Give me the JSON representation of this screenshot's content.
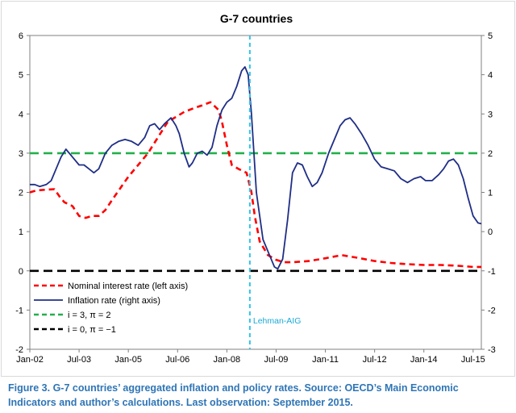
{
  "chart_data": {
    "type": "line",
    "title": "G-7 countries",
    "x_tick_labels": [
      "Jan-02",
      "Jul-03",
      "Jan-05",
      "Jul-06",
      "Jan-08",
      "Jul-09",
      "Jan-11",
      "Jul-12",
      "Jan-14",
      "Jul-15"
    ],
    "x_range": [
      2002.0,
      2015.75
    ],
    "y_left_ticks": [
      "-2",
      "-1",
      "0",
      "1",
      "2",
      "3",
      "4",
      "5",
      "6"
    ],
    "y_left_range": [
      -2,
      6
    ],
    "y_right_ticks": [
      "-3",
      "-2",
      "-1",
      "0",
      "1",
      "2",
      "3",
      "4",
      "5"
    ],
    "y_right_range": [
      -3,
      5
    ],
    "grid": false,
    "legend_position": "lower-left",
    "vline": {
      "x": 2008.7,
      "label": "Lehman-AIG",
      "color": "#33c3e8"
    },
    "series": [
      {
        "name": "Nominal interest rate (left axis)",
        "axis": "left",
        "color": "#ff0000",
        "style": "dashed",
        "x": [
          2002.0,
          2002.2,
          2002.5,
          2002.75,
          2002.9,
          2003.05,
          2003.3,
          2003.5,
          2003.7,
          2003.9,
          2004.1,
          2004.3,
          2004.5,
          2004.75,
          2005.0,
          2005.3,
          2005.6,
          2005.9,
          2006.2,
          2006.5,
          2006.7,
          2007.0,
          2007.25,
          2007.5,
          2007.75,
          2007.85,
          2008.0,
          2008.15,
          2008.35,
          2008.6,
          2008.75,
          2008.85,
          2009.0,
          2009.25,
          2009.5,
          2009.75,
          2010.0,
          2010.5,
          2011.0,
          2011.5,
          2012.0,
          2012.5,
          2013.0,
          2013.5,
          2014.0,
          2014.5,
          2015.0,
          2015.5,
          2015.75
        ],
        "values": [
          2.0,
          2.05,
          2.07,
          2.08,
          1.9,
          1.75,
          1.65,
          1.4,
          1.35,
          1.4,
          1.4,
          1.55,
          1.8,
          2.1,
          2.4,
          2.7,
          3.0,
          3.4,
          3.8,
          3.95,
          4.05,
          4.15,
          4.22,
          4.3,
          4.1,
          3.8,
          3.2,
          2.7,
          2.6,
          2.5,
          2.0,
          1.4,
          0.75,
          0.4,
          0.28,
          0.22,
          0.22,
          0.25,
          0.32,
          0.4,
          0.33,
          0.25,
          0.2,
          0.17,
          0.15,
          0.15,
          0.13,
          0.1,
          0.1
        ]
      },
      {
        "name": "Inflation rate (right axis)",
        "axis": "right",
        "color": "#1f2e86",
        "style": "solid",
        "x": [
          2002.0,
          2002.15,
          2002.3,
          2002.5,
          2002.65,
          2002.8,
          2002.95,
          2003.1,
          2003.3,
          2003.5,
          2003.65,
          2003.8,
          2003.95,
          2004.1,
          2004.3,
          2004.5,
          2004.7,
          2004.9,
          2005.1,
          2005.3,
          2005.5,
          2005.65,
          2005.8,
          2005.95,
          2006.1,
          2006.3,
          2006.45,
          2006.55,
          2006.7,
          2006.85,
          2006.95,
          2007.1,
          2007.25,
          2007.4,
          2007.55,
          2007.7,
          2007.85,
          2008.0,
          2008.15,
          2008.3,
          2008.45,
          2008.55,
          2008.65,
          2008.75,
          2008.9,
          2009.1,
          2009.3,
          2009.45,
          2009.55,
          2009.7,
          2009.85,
          2010.0,
          2010.15,
          2010.3,
          2010.45,
          2010.6,
          2010.75,
          2010.9,
          2011.1,
          2011.3,
          2011.45,
          2011.6,
          2011.75,
          2011.9,
          2012.1,
          2012.3,
          2012.5,
          2012.7,
          2012.9,
          2013.1,
          2013.3,
          2013.5,
          2013.7,
          2013.9,
          2014.05,
          2014.25,
          2014.45,
          2014.6,
          2014.75,
          2014.9,
          2015.05,
          2015.2,
          2015.35,
          2015.5,
          2015.65,
          2015.75
        ],
        "values": [
          1.2,
          1.2,
          1.15,
          1.2,
          1.3,
          1.6,
          1.9,
          2.1,
          1.9,
          1.7,
          1.7,
          1.6,
          1.5,
          1.6,
          2.0,
          2.2,
          2.3,
          2.35,
          2.3,
          2.2,
          2.4,
          2.7,
          2.75,
          2.6,
          2.75,
          2.9,
          2.7,
          2.5,
          2.0,
          1.65,
          1.75,
          2.0,
          2.05,
          1.95,
          2.15,
          2.7,
          3.1,
          3.3,
          3.4,
          3.7,
          4.1,
          4.2,
          4.0,
          3.0,
          1.0,
          -0.2,
          -0.6,
          -0.9,
          -0.95,
          -0.7,
          0.3,
          1.5,
          1.75,
          1.7,
          1.4,
          1.15,
          1.25,
          1.5,
          2.0,
          2.4,
          2.7,
          2.85,
          2.9,
          2.75,
          2.5,
          2.2,
          1.85,
          1.65,
          1.6,
          1.55,
          1.35,
          1.25,
          1.35,
          1.4,
          1.3,
          1.3,
          1.45,
          1.6,
          1.8,
          1.85,
          1.7,
          1.35,
          0.85,
          0.4,
          0.22,
          0.2
        ]
      },
      {
        "name": "i = 3,   π = 2",
        "axis": "left",
        "color": "#22b04b",
        "style": "dashed",
        "x": [
          2002.0,
          2015.75
        ],
        "values": [
          3,
          3
        ]
      },
      {
        "name": "i = 0,   π = −1",
        "axis": "left",
        "color": "#000000",
        "style": "dashed",
        "x": [
          2002.0,
          2015.75
        ],
        "values": [
          0,
          0
        ]
      }
    ]
  },
  "caption": "Figure 3. G-7 countries’ aggregated inflation and policy rates. Source: OECD’s Main Economic Indicators and author’s calculations. Last observation: September 2015."
}
